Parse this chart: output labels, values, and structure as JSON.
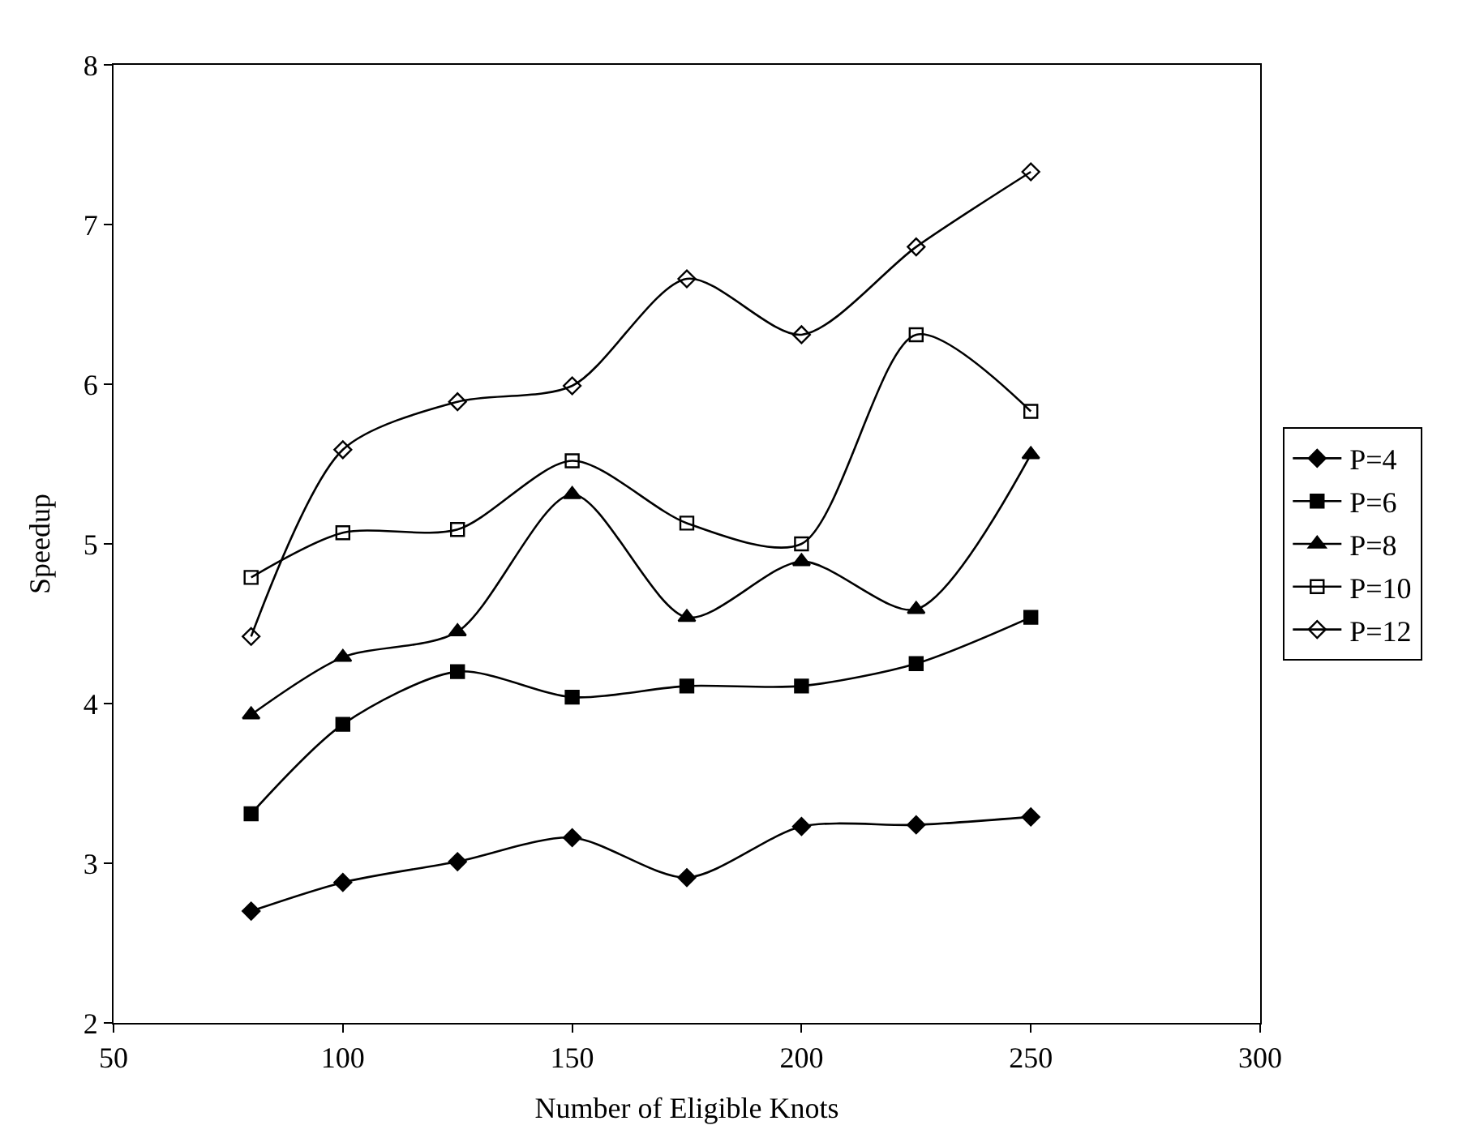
{
  "chart_data": {
    "type": "line",
    "xlabel": "Number of Eligible Knots",
    "ylabel": "Speedup",
    "x": [
      80,
      100,
      125,
      150,
      175,
      200,
      225,
      250
    ],
    "xlim": [
      50,
      300
    ],
    "xticks": [
      50,
      100,
      150,
      200,
      250,
      300
    ],
    "ylim": [
      2,
      8
    ],
    "yticks": [
      2,
      3,
      4,
      5,
      6,
      7,
      8
    ],
    "grid": false,
    "legend": "right",
    "line_style": "solid",
    "series": [
      {
        "name": "P=4",
        "color": "#000000",
        "marker": "diamond",
        "values": [
          2.7,
          2.88,
          3.01,
          3.16,
          2.91,
          3.23,
          3.24,
          3.29
        ]
      },
      {
        "name": "P=6",
        "color": "#000000",
        "marker": "square",
        "values": [
          3.31,
          3.87,
          4.2,
          4.04,
          4.11,
          4.11,
          4.25,
          4.54
        ]
      },
      {
        "name": "P=8",
        "color": "#000000",
        "marker": "triangle",
        "values": [
          3.93,
          4.29,
          4.45,
          5.31,
          4.54,
          4.89,
          4.59,
          5.56
        ]
      },
      {
        "name": "P=10",
        "color": "#000000",
        "marker": "square",
        "values": [
          4.79,
          5.07,
          5.09,
          5.52,
          5.13,
          5.0,
          6.31,
          5.83
        ]
      },
      {
        "name": "P=12",
        "color": "#000000",
        "marker": "diamond",
        "values": [
          4.42,
          5.59,
          5.89,
          5.99,
          6.66,
          6.31,
          6.86,
          7.33
        ]
      }
    ]
  }
}
